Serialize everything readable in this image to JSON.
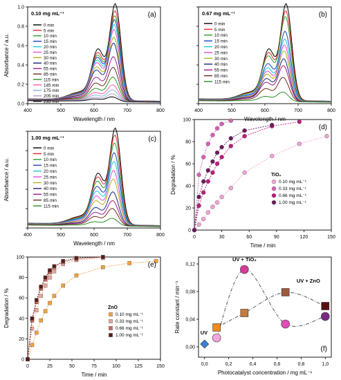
{
  "colors": {
    "axis": "#000000",
    "spectra": [
      "#000000",
      "#e8262b",
      "#2ca02c",
      "#1f3fbf",
      "#1cc7d4",
      "#e44bd9",
      "#b5b01a",
      "#1a237e",
      "#9b1b8f",
      "#6b2d1a",
      "#2a8f2a",
      "#ff5aa8",
      "#7cb2d8",
      "#b0a0d0"
    ],
    "tio2": [
      "#f1a3d6",
      "#d85fb8",
      "#c01a7f",
      "#6b1a5c"
    ],
    "zno": [
      "#f4a23a",
      "#e9a79a",
      "#c9695b",
      "#5b1b14"
    ],
    "f_markers": {
      "uv": "#3a7fd6",
      "tio2_010": "#f3a6de",
      "tio2_033": "#d63a9a",
      "tio2_067": "#e14cb8",
      "tio2_100": "#7a2a82",
      "zno_010": "#f08a1e",
      "zno_033": "#c77a3a",
      "zno_067": "#9e5a3a",
      "zno_100": "#5b1010"
    }
  },
  "panels": {
    "a": {
      "label": "(a)",
      "conc": "0.10 mg mL⁻¹",
      "xlabel": "Wavelength / nm",
      "ylabel": "Absorbance / a.u.",
      "legend": [
        "0 min",
        "5 min",
        "10 min",
        "15 min",
        "20 min",
        "25 min",
        "30 min",
        "40 min",
        "55 min",
        "85 min",
        "115 min",
        "145 min",
        "175 min",
        "205 min",
        "235 min"
      ],
      "xticks": [
        "400",
        "500",
        "600",
        "700",
        "800"
      ],
      "yticks": [
        "0.0",
        "0.2",
        "0.4",
        "0.6",
        "0.8",
        "1.0"
      ]
    },
    "b": {
      "label": "(b)",
      "conc": "0.67 mg mL⁻¹",
      "xlabel": "Wavelength / nm",
      "ylabel": "",
      "legend": [
        "0 min",
        "5 min",
        "10 min",
        "15 min",
        "20 min",
        "25 min",
        "30 min",
        "40 min",
        "55 min",
        "85 min",
        "115 min"
      ],
      "xticks": [
        "400",
        "500",
        "600",
        "700",
        "800"
      ],
      "yticks": []
    },
    "c": {
      "label": "(c)",
      "conc": "1.00 mg mL⁻¹",
      "xlabel": "Wavelength / nm",
      "ylabel": "Absorbance / a.u.",
      "legend": [
        "0 min",
        "5 min",
        "10 min",
        "15 min",
        "20 min",
        "25 min",
        "30 min",
        "40 min",
        "55 min",
        "85 min",
        "115 min"
      ],
      "xticks": [
        "400",
        "500",
        "600",
        "700",
        "800"
      ],
      "yticks": []
    },
    "d": {
      "label": "(d)",
      "xlabel": "Time / min",
      "ylabel": "Degradation / %",
      "legend_title": "TiO₂",
      "legend": [
        "0.10 mg mL⁻¹",
        "0.33 mg mL⁻¹",
        "0.66 mg mL⁻¹",
        "1.00 mg mL⁻¹"
      ],
      "xticks": [
        "0",
        "30",
        "60",
        "90",
        "120",
        "150"
      ],
      "yticks": [
        "0",
        "20",
        "40",
        "60",
        "80",
        "100"
      ]
    },
    "e": {
      "label": "(e)",
      "xlabel": "Time / min",
      "ylabel": "Degradation / %",
      "legend_title": "ZnO",
      "legend": [
        "0.10 mg mL⁻¹",
        "0.33 mg mL⁻¹",
        "0.66 mg mL⁻¹",
        "1.00 mg mL⁻¹"
      ],
      "xticks": [
        "0",
        "25",
        "50",
        "75",
        "100",
        "125",
        "150"
      ],
      "yticks": [
        "0",
        "20",
        "40",
        "60",
        "80",
        "100"
      ]
    },
    "f": {
      "label": "(f)",
      "xlabel": "Photocatalyst concentration / mg mL⁻¹",
      "ylabel": "Rate constant / min⁻¹",
      "annotations": [
        "UV",
        "UV + TiO₂",
        "UV + ZnO"
      ],
      "xticks": [
        "0,0",
        "0,2",
        "0,4",
        "0,6",
        "0,8",
        "1,0"
      ],
      "yticks": [
        "0,00",
        "0,04",
        "0,08",
        "0,12"
      ]
    }
  },
  "chart_data": [
    {
      "type": "line",
      "panel": "a",
      "xlim": [
        400,
        800
      ],
      "ylim": [
        0,
        1.0
      ],
      "peak_values": [
        1.0,
        0.93,
        0.88,
        0.84,
        0.79,
        0.74,
        0.66,
        0.6,
        0.46,
        0.35,
        0.25,
        0.17,
        0.12,
        0.08,
        0.05
      ]
    },
    {
      "type": "line",
      "panel": "b",
      "xlim": [
        400,
        800
      ],
      "ylim": [
        0,
        1.0
      ],
      "peak_values": [
        1.0,
        0.93,
        0.87,
        0.72,
        0.64,
        0.58,
        0.52,
        0.44,
        0.37,
        0.25,
        0.1
      ]
    },
    {
      "type": "line",
      "panel": "c",
      "xlim": [
        400,
        800
      ],
      "ylim": [
        0,
        1.0
      ],
      "peak_values": [
        1.0,
        0.93,
        0.85,
        0.75,
        0.66,
        0.57,
        0.48,
        0.35,
        0.26,
        0.18,
        0.08
      ]
    },
    {
      "type": "scatter",
      "panel": "d",
      "xlim": [
        0,
        150
      ],
      "ylim": [
        0,
        100
      ],
      "series": [
        {
          "name": "0.10 mg mL⁻¹",
          "x": [
            0,
            5,
            10,
            15,
            20,
            25,
            30,
            40,
            55,
            85,
            115,
            145
          ],
          "y": [
            0,
            5,
            10,
            16,
            21,
            25,
            30,
            38,
            52,
            67,
            78,
            85
          ]
        },
        {
          "name": "0.33 mg mL⁻¹",
          "x": [
            0,
            5,
            10,
            15,
            20,
            25,
            30,
            40
          ],
          "y": [
            0,
            50,
            66,
            78,
            86,
            92,
            96,
            99
          ]
        },
        {
          "name": "0.66 mg mL⁻¹",
          "x": [
            0,
            5,
            10,
            15,
            20,
            25,
            30,
            40,
            55,
            85,
            115
          ],
          "y": [
            0,
            22,
            34,
            44,
            52,
            60,
            66,
            76,
            85,
            94,
            98
          ]
        },
        {
          "name": "1.00 mg mL⁻¹",
          "x": [
            0,
            5,
            10,
            15,
            20,
            25,
            30,
            40,
            55,
            85
          ],
          "y": [
            0,
            30,
            44,
            54,
            62,
            70,
            75,
            83,
            90,
            95
          ]
        }
      ]
    },
    {
      "type": "scatter",
      "panel": "e",
      "xlim": [
        0,
        150
      ],
      "ylim": [
        0,
        100
      ],
      "series": [
        {
          "name": "0.10 mg mL⁻¹",
          "x": [
            0,
            5,
            10,
            15,
            20,
            25,
            30,
            40,
            55,
            85,
            115,
            145
          ],
          "y": [
            0,
            14,
            26,
            38,
            47,
            55,
            62,
            72,
            82,
            90,
            94,
            96
          ]
        },
        {
          "name": "0.33 mg mL⁻¹",
          "x": [
            0,
            5,
            10,
            15,
            20,
            25,
            30,
            40,
            55,
            85
          ],
          "y": [
            0,
            30,
            48,
            62,
            72,
            80,
            86,
            93,
            97,
            99
          ]
        },
        {
          "name": "0.66 mg mL⁻¹",
          "x": [
            0,
            5,
            10,
            15,
            20,
            25,
            30,
            40,
            55,
            85
          ],
          "y": [
            0,
            38,
            56,
            69,
            78,
            85,
            90,
            95,
            98,
            100
          ]
        },
        {
          "name": "1.00 mg mL⁻¹",
          "x": [
            0,
            5,
            10,
            15,
            20,
            25,
            30,
            40,
            55,
            85
          ],
          "y": [
            0,
            40,
            58,
            71,
            80,
            87,
            91,
            96,
            99,
            100
          ]
        }
      ]
    },
    {
      "type": "scatter",
      "panel": "f",
      "xlim": [
        -0.05,
        1.05
      ],
      "ylim": [
        -0.015,
        0.13
      ],
      "points": [
        {
          "group": "UV",
          "x": 0.0,
          "y": 0.004,
          "shape": "diamond"
        },
        {
          "group": "TiO₂",
          "x": 0.1,
          "y": 0.013,
          "shape": "circle"
        },
        {
          "group": "TiO₂",
          "x": 0.33,
          "y": 0.112,
          "shape": "circle"
        },
        {
          "group": "TiO₂",
          "x": 0.67,
          "y": 0.033,
          "shape": "circle"
        },
        {
          "group": "TiO₂",
          "x": 1.0,
          "y": 0.044,
          "shape": "circle"
        },
        {
          "group": "ZnO",
          "x": 0.1,
          "y": 0.028,
          "shape": "square"
        },
        {
          "group": "ZnO",
          "x": 0.33,
          "y": 0.049,
          "shape": "square"
        },
        {
          "group": "ZnO",
          "x": 0.67,
          "y": 0.079,
          "shape": "square"
        },
        {
          "group": "ZnO",
          "x": 1.0,
          "y": 0.059,
          "shape": "square"
        }
      ]
    }
  ]
}
